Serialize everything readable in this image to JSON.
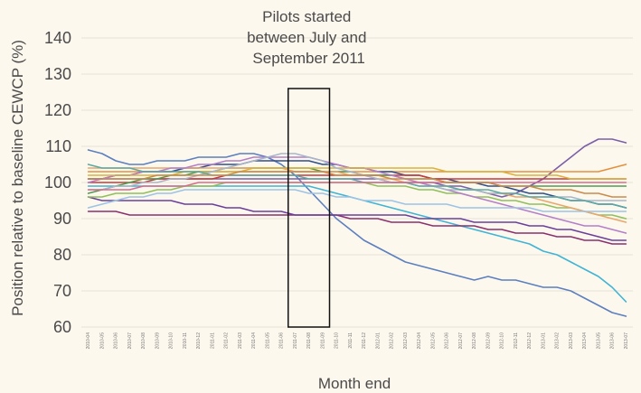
{
  "chart_data": {
    "type": "line",
    "title": "",
    "xlabel": "Month end",
    "ylabel": "Position relative to baseline CEWCP (%)",
    "ylim": [
      60,
      140
    ],
    "yticks": [
      60,
      70,
      80,
      90,
      100,
      110,
      120,
      130,
      140
    ],
    "grid": true,
    "legend": "none",
    "x": [
      "2010-04",
      "2010-05",
      "2010-06",
      "2010-07",
      "2010-08",
      "2010-09",
      "2010-10",
      "2010-11",
      "2010-12",
      "2011-01",
      "2011-02",
      "2011-03",
      "2011-04",
      "2011-05",
      "2011-06",
      "2011-07",
      "2011-08",
      "2011-09",
      "2011-10",
      "2011-11",
      "2011-12",
      "2012-01",
      "2012-02",
      "2012-03",
      "2012-04",
      "2012-05",
      "2012-06",
      "2012-07",
      "2012-08",
      "2012-09",
      "2012-10",
      "2012-11",
      "2012-12",
      "2013-01",
      "2013-02",
      "2013-03",
      "2013-04",
      "2013-05",
      "2013-06",
      "2013-07"
    ],
    "annotation": {
      "lines": [
        "Pilots started",
        "between July and",
        "September 2011"
      ],
      "start": "2011-07",
      "end": "2011-09"
    },
    "series": [
      {
        "color": "#5b7fbf",
        "values": [
          109,
          108,
          106,
          105,
          105,
          106,
          106,
          106,
          107,
          107,
          107,
          108,
          108,
          107,
          105,
          102,
          98,
          94,
          90,
          87,
          84,
          82,
          80,
          78,
          77,
          76,
          75,
          74,
          73,
          74,
          73,
          73,
          72,
          71,
          71,
          70,
          68,
          66,
          64,
          63
        ]
      },
      {
        "color": "#3fb4d4",
        "values": [
          99,
          99,
          99,
          99,
          99,
          99,
          99,
          99,
          99,
          99,
          99,
          99,
          99,
          99,
          99,
          99,
          99,
          98,
          97,
          96,
          95,
          94,
          93,
          92,
          91,
          90,
          89,
          88,
          87,
          86,
          85,
          84,
          83,
          81,
          80,
          78,
          76,
          74,
          71,
          67
        ]
      },
      {
        "color": "#7a5fa8",
        "values": [
          101,
          101,
          101,
          101,
          101,
          101,
          101,
          101,
          101,
          101,
          101,
          101,
          101,
          101,
          101,
          101,
          101,
          101,
          101,
          101,
          101,
          101,
          100,
          100,
          100,
          100,
          99,
          99,
          98,
          97,
          96,
          97,
          99,
          101,
          104,
          107,
          110,
          112,
          112,
          111
        ]
      },
      {
        "color": "#e58f3a",
        "values": [
          103,
          103,
          103,
          103,
          103,
          103,
          103,
          103,
          103,
          103,
          103,
          103,
          103,
          103,
          103,
          103,
          103,
          103,
          103,
          103,
          103,
          103,
          103,
          103,
          103,
          103,
          103,
          103,
          103,
          103,
          103,
          103,
          103,
          103,
          103,
          103,
          103,
          103,
          104,
          105
        ]
      },
      {
        "color": "#8a2f6f",
        "values": [
          92,
          92,
          92,
          91,
          91,
          91,
          91,
          91,
          91,
          91,
          91,
          91,
          91,
          91,
          91,
          91,
          91,
          91,
          91,
          90,
          90,
          90,
          89,
          89,
          89,
          88,
          88,
          88,
          88,
          87,
          87,
          86,
          86,
          86,
          85,
          85,
          84,
          84,
          83,
          83
        ]
      },
      {
        "color": "#6a3f9c",
        "values": [
          96,
          95,
          95,
          95,
          95,
          95,
          95,
          94,
          94,
          94,
          93,
          93,
          92,
          92,
          92,
          91,
          91,
          91,
          91,
          91,
          91,
          91,
          91,
          91,
          90,
          90,
          90,
          90,
          89,
          89,
          89,
          89,
          88,
          88,
          87,
          87,
          86,
          85,
          84,
          84
        ]
      },
      {
        "color": "#2e4f8a",
        "values": [
          101,
          101,
          102,
          102,
          103,
          103,
          103,
          104,
          104,
          105,
          105,
          105,
          106,
          106,
          106,
          106,
          106,
          105,
          105,
          104,
          104,
          103,
          103,
          102,
          102,
          101,
          101,
          100,
          100,
          99,
          99,
          98,
          97,
          97,
          96,
          95,
          95,
          94,
          94,
          93
        ]
      },
      {
        "color": "#c73b3b",
        "values": [
          100,
          100,
          100,
          100,
          100,
          101,
          101,
          101,
          101,
          101,
          102,
          102,
          102,
          102,
          102,
          102,
          102,
          102,
          102,
          102,
          102,
          102,
          102,
          102,
          102,
          101,
          101,
          101,
          101,
          101,
          101,
          101,
          101,
          101,
          101,
          101,
          101,
          101,
          101,
          101
        ]
      },
      {
        "color": "#4f9a52",
        "values": [
          97,
          98,
          99,
          100,
          101,
          101,
          102,
          102,
          103,
          103,
          104,
          104,
          104,
          104,
          104,
          104,
          104,
          103,
          103,
          103,
          102,
          102,
          102,
          101,
          101,
          101,
          100,
          100,
          100,
          100,
          99,
          99,
          99,
          99,
          99,
          99,
          99,
          99,
          99,
          99
        ]
      },
      {
        "color": "#8fbf5a",
        "values": [
          96,
          96,
          97,
          97,
          97,
          98,
          98,
          99,
          99,
          99,
          100,
          100,
          100,
          100,
          100,
          100,
          100,
          100,
          100,
          100,
          100,
          99,
          99,
          99,
          98,
          98,
          97,
          97,
          96,
          96,
          95,
          95,
          94,
          94,
          93,
          93,
          92,
          91,
          91,
          90
        ]
      },
      {
        "color": "#e8a66a",
        "values": [
          104,
          104,
          104,
          104,
          104,
          104,
          104,
          104,
          104,
          104,
          104,
          104,
          104,
          104,
          104,
          103,
          103,
          103,
          103,
          102,
          102,
          101,
          101,
          100,
          100,
          99,
          99,
          98,
          98,
          97,
          97,
          96,
          96,
          95,
          94,
          93,
          92,
          91,
          90,
          89
        ]
      },
      {
        "color": "#b47fc9",
        "values": [
          100,
          101,
          102,
          102,
          103,
          103,
          104,
          104,
          105,
          105,
          106,
          106,
          107,
          107,
          107,
          107,
          107,
          106,
          105,
          104,
          104,
          103,
          102,
          101,
          100,
          99,
          98,
          97,
          96,
          95,
          94,
          93,
          92,
          91,
          90,
          89,
          88,
          88,
          87,
          86
        ]
      },
      {
        "color": "#9cc3e6",
        "values": [
          93,
          94,
          95,
          96,
          96,
          97,
          97,
          98,
          98,
          98,
          98,
          98,
          98,
          98,
          98,
          98,
          97,
          97,
          96,
          96,
          95,
          95,
          95,
          94,
          94,
          94,
          94,
          93,
          93,
          93,
          93,
          93,
          93,
          92,
          92,
          92,
          92,
          92,
          92,
          92
        ]
      },
      {
        "color": "#d9b23a",
        "values": [
          102,
          102,
          102,
          102,
          102,
          102,
          102,
          103,
          103,
          103,
          103,
          103,
          104,
          104,
          104,
          104,
          104,
          104,
          104,
          104,
          104,
          104,
          104,
          104,
          104,
          104,
          103,
          103,
          103,
          103,
          103,
          102,
          102,
          102,
          102,
          101,
          101,
          101,
          101,
          101
        ]
      },
      {
        "color": "#a8b6c9",
        "values": [
          98,
          98,
          99,
          99,
          100,
          100,
          101,
          101,
          102,
          103,
          104,
          105,
          106,
          107,
          108,
          108,
          107,
          106,
          104,
          103,
          102,
          101,
          100,
          100,
          99,
          99,
          98,
          98,
          98,
          97,
          97,
          97,
          96,
          96,
          96,
          96,
          95,
          95,
          95,
          95
        ]
      },
      {
        "color": "#5aa9a4",
        "values": [
          105,
          104,
          104,
          104,
          103,
          103,
          103,
          103,
          103,
          102,
          102,
          102,
          102,
          102,
          102,
          102,
          101,
          101,
          101,
          101,
          100,
          100,
          100,
          100,
          99,
          99,
          99,
          98,
          98,
          98,
          97,
          97,
          96,
          96,
          96,
          95,
          95,
          94,
          94,
          93
        ]
      },
      {
        "color": "#d96a8f",
        "values": [
          98,
          98,
          98,
          98,
          99,
          99,
          99,
          99,
          100,
          100,
          100,
          100,
          100,
          100,
          100,
          100,
          100,
          100,
          100,
          100,
          100,
          100,
          100,
          100,
          100,
          100,
          100,
          100,
          100,
          100,
          100,
          100,
          100,
          100,
          100,
          100,
          100,
          100,
          100,
          100
        ]
      },
      {
        "color": "#c98a4a",
        "values": [
          101,
          101,
          101,
          101,
          101,
          102,
          102,
          102,
          102,
          102,
          102,
          103,
          103,
          103,
          103,
          103,
          103,
          103,
          102,
          102,
          102,
          102,
          101,
          101,
          101,
          101,
          100,
          100,
          100,
          100,
          99,
          99,
          99,
          98,
          98,
          98,
          97,
          97,
          96,
          96
        ]
      }
    ]
  }
}
